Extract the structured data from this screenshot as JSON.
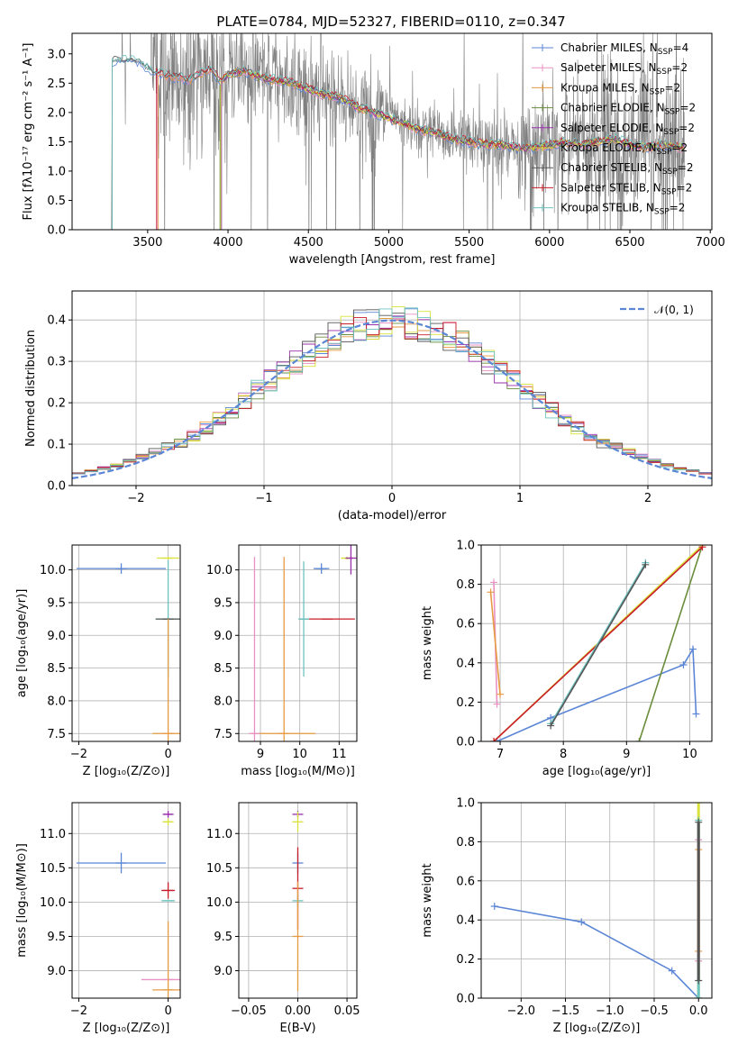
{
  "figure_title": "PLATE=0784, MJD=52327, FIBERID=0110, z=0.347",
  "colors": {
    "chabrier_miles": "#5b86d6",
    "salpeter_miles": "#e991c4",
    "kroupa_miles": "#e69a42",
    "chabrier_elodie": "#6a8d3c",
    "salpeter_elodie": "#9b2fae",
    "kroupa_elodie": "#d8e23a",
    "chabrier_stelib": "#555555",
    "salpeter_stelib": "#c81d2a",
    "kroupa_stelib": "#6cc3c0",
    "data": "#808080",
    "ncurve": "#5b86d6",
    "grid": "#b0b0b0"
  },
  "chart_data": [
    {
      "id": "spectrum",
      "type": "line",
      "xlabel": "wavelength [Angstrom, rest frame]",
      "ylabel": "Flux [fλ10⁻¹⁷ erg cm⁻² s⁻¹ A⁻¹]",
      "xlim": [
        3030,
        7010
      ],
      "ylim": [
        0,
        3.35
      ],
      "xticks": [
        3500,
        4000,
        4500,
        5000,
        5500,
        6000,
        6500,
        7000
      ],
      "yticks": [
        "0.0",
        "0.5",
        "1.0",
        "1.5",
        "2.0",
        "2.5",
        "3.0"
      ],
      "yticks_values": [
        0,
        0.5,
        1.0,
        1.5,
        2.0,
        2.5,
        3.0
      ],
      "legend_placement": "upper-right",
      "legend": [
        {
          "label": "Chabrier MILES, N",
          "sub": "SSP",
          "suffix": "=4",
          "color_key": "chabrier_miles"
        },
        {
          "label": "Salpeter MILES, N",
          "sub": "SSP",
          "suffix": "=2",
          "color_key": "salpeter_miles"
        },
        {
          "label": "Kroupa MILES, N",
          "sub": "SSP",
          "suffix": "=2",
          "color_key": "kroupa_miles"
        },
        {
          "label": "Chabrier ELODIE, N",
          "sub": "SSP",
          "suffix": "=2",
          "color_key": "chabrier_elodie"
        },
        {
          "label": "Salpeter ELODIE, N",
          "sub": "SSP",
          "suffix": "=2",
          "color_key": "salpeter_elodie"
        },
        {
          "label": "Kroupa ELODIE, N",
          "sub": "SSP",
          "suffix": "=2",
          "color_key": "kroupa_elodie"
        },
        {
          "label": "Chabrier STELIB, N",
          "sub": "SSP",
          "suffix": "=2",
          "color_key": "chabrier_stelib"
        },
        {
          "label": "Salpeter STELIB, N",
          "sub": "SSP",
          "suffix": "=2",
          "color_key": "salpeter_stelib"
        },
        {
          "label": "Kroupa STELIB, N",
          "sub": "SSP",
          "suffix": "=2",
          "color_key": "kroupa_stelib"
        }
      ],
      "model_continuum": {
        "x": [
          3280,
          3300,
          3350,
          3400,
          3450,
          3500,
          3550,
          3600,
          3650,
          3700,
          3750,
          3800,
          3850,
          3900,
          3950,
          4000,
          4100,
          4200,
          4300,
          4400,
          4500,
          4600,
          4700,
          4800,
          4900,
          5000,
          5100,
          5200,
          5300,
          5400,
          5500,
          5600,
          5700,
          5800,
          5900,
          6000,
          6100,
          6200,
          6300,
          6400,
          6500,
          6600,
          6700,
          6800
        ],
        "y": [
          2.85,
          2.9,
          2.88,
          2.9,
          2.85,
          2.75,
          2.7,
          2.65,
          2.6,
          2.6,
          2.55,
          2.6,
          2.7,
          2.75,
          2.5,
          2.65,
          2.7,
          2.6,
          2.55,
          2.5,
          2.4,
          2.3,
          2.25,
          2.1,
          2.0,
          1.9,
          1.8,
          1.7,
          1.65,
          1.55,
          1.5,
          1.45,
          1.45,
          1.4,
          1.4,
          1.45,
          1.5,
          1.45,
          1.5,
          1.55,
          1.45,
          1.4,
          1.45,
          1.4
        ]
      },
      "model_starts": {
        "chabrier_miles": 3280,
        "salpeter_miles": 3560,
        "kroupa_miles": 3565,
        "chabrier_elodie": 3950,
        "salpeter_elodie": 3960,
        "kroupa_elodie": 3955,
        "chabrier_stelib": 3280,
        "salpeter_stelib": 3555,
        "kroupa_stelib": 3280
      }
    },
    {
      "id": "residuals",
      "type": "line",
      "xlabel": "(data-model)/error",
      "ylabel": "Normed distribution",
      "xlim": [
        -2.5,
        2.5
      ],
      "ylim": [
        0,
        0.47
      ],
      "xticks": [
        -2,
        -1,
        0,
        1,
        2
      ],
      "xticks_labels": [
        "−2",
        "−1",
        "0",
        "1",
        "2"
      ],
      "yticks": [
        "0.0",
        "0.1",
        "0.2",
        "0.3",
        "0.4"
      ],
      "yticks_values": [
        0,
        0.1,
        0.2,
        0.3,
        0.4
      ],
      "legend_placement": "upper-right",
      "legend": [
        {
          "label": "𝒩(0, 1)",
          "color_key": "ncurve"
        }
      ],
      "histogram_bin_width": 0.1
    },
    {
      "id": "age_vs_Z",
      "type": "scatter",
      "xlabel": "Z [log₁₀(Z/Z⊙)]",
      "ylabel": "age  [log₁₀(age/yr)]",
      "xlim": [
        -2.15,
        0.27
      ],
      "ylim": [
        7.38,
        10.38
      ],
      "xticks": [
        -2,
        0
      ],
      "xticks_labels": [
        "−2",
        "0"
      ],
      "yticks": [
        "7.5",
        "8.0",
        "8.5",
        "9.0",
        "9.5",
        "10.0"
      ],
      "yticks_values": [
        7.5,
        8.0,
        8.5,
        9.0,
        9.5,
        10.0
      ],
      "points": [
        {
          "x": -1.05,
          "y": 10.02,
          "xerr": 1.0,
          "yerr": 0.08,
          "color_key": "chabrier_miles"
        },
        {
          "x": 0.0,
          "y": 10.18,
          "xerr": 0.25,
          "yerr": 0.02,
          "color_key": "kroupa_elodie"
        },
        {
          "x": 0.0,
          "y": 9.25,
          "xerr": 0.28,
          "yerr": 0.9,
          "color_key": "kroupa_stelib"
        },
        {
          "x": 0.0,
          "y": 9.25,
          "xerr": 0.28,
          "yerr": 0.0,
          "color_key": "chabrier_stelib"
        },
        {
          "x": 0.0,
          "y": 7.5,
          "xerr": 0.35,
          "yerr": 1.75,
          "color_key": "kroupa_miles"
        }
      ]
    },
    {
      "id": "age_vs_mass",
      "type": "scatter",
      "xlabel": "mass [log₁₀(M/M⊙)]",
      "ylabel": "",
      "xlim": [
        8.45,
        11.45
      ],
      "ylim": [
        7.38,
        10.38
      ],
      "xticks": [
        9,
        10,
        11
      ],
      "yticks": [
        "7.5",
        "8.0",
        "8.5",
        "9.0",
        "9.5",
        "10.0"
      ],
      "yticks_values": [
        7.5,
        8.0,
        8.5,
        9.0,
        9.5,
        10.0
      ],
      "points": [
        {
          "x": 10.55,
          "y": 10.02,
          "xerr": 0.2,
          "yerr": 0.08,
          "color_key": "chabrier_miles"
        },
        {
          "x": 10.7,
          "y": 9.25,
          "xerr": 0.7,
          "yerr": 0.0,
          "color_key": "salpeter_stelib"
        },
        {
          "x": 10.1,
          "y": 9.25,
          "xerr": 0.1,
          "yerr": 0.88,
          "color_key": "kroupa_stelib"
        },
        {
          "x": 11.2,
          "y": 10.18,
          "xerr": 0.15,
          "yerr": 0.02,
          "color_key": "kroupa_elodie"
        },
        {
          "x": 11.3,
          "y": 10.18,
          "xerr": 0.05,
          "yerr": 0.25,
          "color_key": "salpeter_elodie"
        },
        {
          "x": 9.6,
          "y": 7.5,
          "xerr": 0.8,
          "yerr": 2.7,
          "color_key": "kroupa_miles"
        },
        {
          "x": 8.85,
          "y": 7.5,
          "xerr": 0.05,
          "yerr": 2.7,
          "color_key": "salpeter_miles"
        }
      ]
    },
    {
      "id": "massweight_vs_age",
      "type": "line",
      "xlabel": "age  [log₁₀(age/yr)]",
      "ylabel": "mass weight",
      "xlim": [
        6.7,
        10.35
      ],
      "ylim": [
        0,
        1.0
      ],
      "xticks": [
        7,
        8,
        9,
        10
      ],
      "yticks": [
        "0.0",
        "0.2",
        "0.4",
        "0.6",
        "0.8",
        "1.0"
      ],
      "yticks_values": [
        0,
        0.2,
        0.4,
        0.6,
        0.8,
        1.0
      ],
      "series": [
        {
          "color_key": "chabrier_miles",
          "x": [
            6.95,
            7.8,
            9.9,
            10.05,
            10.1
          ],
          "y": [
            0.0,
            0.12,
            0.39,
            0.47,
            0.14
          ]
        },
        {
          "color_key": "salpeter_miles",
          "x": [
            6.9,
            6.95
          ],
          "y": [
            0.81,
            0.19
          ]
        },
        {
          "color_key": "kroupa_miles",
          "x": [
            6.85,
            7.0
          ],
          "y": [
            0.76,
            0.24
          ]
        },
        {
          "color_key": "chabrier_elodie",
          "x": [
            9.2,
            10.2
          ],
          "y": [
            0.0,
            1.0
          ]
        },
        {
          "color_key": "kroupa_elodie",
          "x": [
            6.9,
            10.2
          ],
          "y": [
            0.0,
            1.0
          ]
        },
        {
          "color_key": "salpeter_stelib",
          "x": [
            6.9,
            10.2
          ],
          "y": [
            0.0,
            0.99
          ]
        },
        {
          "color_key": "kroupa_stelib",
          "x": [
            7.8,
            9.3
          ],
          "y": [
            0.09,
            0.91
          ]
        },
        {
          "color_key": "chabrier_stelib",
          "x": [
            7.8,
            9.3
          ],
          "y": [
            0.08,
            0.9
          ]
        }
      ]
    },
    {
      "id": "mass_vs_Z",
      "type": "scatter",
      "xlabel": "Z [log₁₀(Z/Z⊙)]",
      "ylabel": "mass [log₁₀(M/M⊙)]",
      "xlim": [
        -2.15,
        0.27
      ],
      "ylim": [
        8.6,
        11.45
      ],
      "xticks": [
        -2,
        0
      ],
      "xticks_labels": [
        "−2",
        "0"
      ],
      "yticks": [
        "9.0",
        "9.5",
        "10.0",
        "10.5",
        "11.0"
      ],
      "yticks_values": [
        9.0,
        9.5,
        10.0,
        10.5,
        11.0
      ],
      "points": [
        {
          "x": -1.05,
          "y": 10.57,
          "xerr": 1.0,
          "yerr": 0.15,
          "color_key": "chabrier_miles"
        },
        {
          "x": 0.0,
          "y": 11.28,
          "xerr": 0.1,
          "yerr": 0.05,
          "color_key": "salpeter_elodie"
        },
        {
          "x": 0.0,
          "y": 11.17,
          "xerr": 0.1,
          "yerr": 0.05,
          "color_key": "kroupa_elodie"
        },
        {
          "x": 0.0,
          "y": 10.17,
          "xerr": 0.15,
          "yerr": 0.12,
          "color_key": "salpeter_stelib"
        },
        {
          "x": 0.0,
          "y": 10.02,
          "xerr": 0.15,
          "yerr": 0.0,
          "color_key": "kroupa_stelib"
        },
        {
          "x": 0.0,
          "y": 8.87,
          "xerr": 0.6,
          "yerr": 0.0,
          "color_key": "salpeter_miles"
        },
        {
          "x": 0.0,
          "y": 8.72,
          "xerr": 0.35,
          "yerr": 1.0,
          "color_key": "kroupa_miles"
        }
      ]
    },
    {
      "id": "mass_vs_EBV",
      "type": "scatter",
      "xlabel": "E(B-V)",
      "ylabel": "",
      "xlim": [
        -0.06,
        0.06
      ],
      "ylim": [
        8.6,
        11.45
      ],
      "xticks": [
        -0.05,
        0.0,
        0.05
      ],
      "xticks_labels": [
        "−0.05",
        "0.00",
        "0.05"
      ],
      "yticks": [
        "9.0",
        "9.5",
        "10.0",
        "10.5",
        "11.0"
      ],
      "yticks_values": [
        9.0,
        9.5,
        10.0,
        10.5,
        11.0
      ],
      "points": [
        {
          "x": 0.0,
          "y": 10.57,
          "xerr": 0.0,
          "yerr": 0.15,
          "color_key": "chabrier_miles"
        },
        {
          "x": 0.0,
          "y": 11.28,
          "xerr": 0.0,
          "yerr": 0.05,
          "color_key": "salpeter_elodie"
        },
        {
          "x": 0.0,
          "y": 11.17,
          "xerr": 0.0,
          "yerr": 0.15,
          "color_key": "kroupa_elodie"
        },
        {
          "x": 0.0,
          "y": 10.2,
          "xerr": 0.0,
          "yerr": 0.6,
          "color_key": "salpeter_stelib"
        },
        {
          "x": 0.0,
          "y": 10.02,
          "xerr": 0.0,
          "yerr": 0.1,
          "color_key": "kroupa_stelib"
        },
        {
          "x": 0.0,
          "y": 9.5,
          "xerr": 0.0,
          "yerr": 0.8,
          "color_key": "kroupa_miles"
        }
      ]
    },
    {
      "id": "massweight_vs_Z",
      "type": "line",
      "xlabel": "Z [log₁₀(Z/Z⊙)]",
      "ylabel": "mass weight",
      "xlim": [
        -2.45,
        0.15
      ],
      "ylim": [
        0,
        1.0
      ],
      "xticks": [
        -2.0,
        -1.5,
        -1.0,
        -0.5,
        0.0
      ],
      "xticks_labels": [
        "−2.0",
        "−1.5",
        "−1.0",
        "−0.5",
        "0.0"
      ],
      "yticks": [
        "0.0",
        "0.2",
        "0.4",
        "0.6",
        "0.8",
        "1.0"
      ],
      "yticks_values": [
        0,
        0.2,
        0.4,
        0.6,
        0.8,
        1.0
      ],
      "series": [
        {
          "color_key": "chabrier_miles",
          "x": [
            -2.3,
            -1.32,
            -0.3,
            0.0
          ],
          "y": [
            0.47,
            0.39,
            0.14,
            0.0
          ]
        },
        {
          "color_key": "kroupa_elodie",
          "x": [
            0.0,
            0.0
          ],
          "y": [
            0.0,
            1.0
          ]
        },
        {
          "color_key": "kroupa_stelib",
          "x": [
            0.0,
            0.0
          ],
          "y": [
            0.0,
            0.91
          ]
        },
        {
          "color_key": "salpeter_miles",
          "x": [
            0.0,
            0.0
          ],
          "y": [
            0.19,
            0.81
          ]
        },
        {
          "color_key": "kroupa_miles",
          "x": [
            0.0,
            0.0
          ],
          "y": [
            0.24,
            0.76
          ]
        },
        {
          "color_key": "chabrier_stelib",
          "x": [
            0.0,
            0.0
          ],
          "y": [
            0.09,
            0.9
          ]
        }
      ]
    }
  ]
}
